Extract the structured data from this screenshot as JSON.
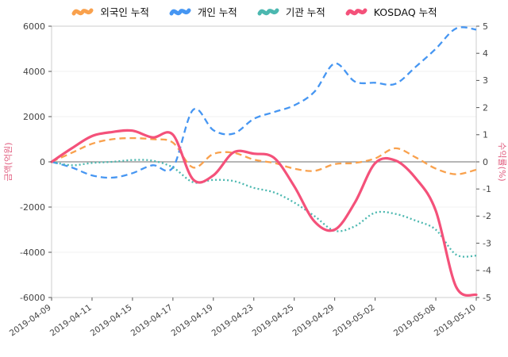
{
  "chart_data": {
    "type": "line",
    "ylabel_left": "금액(억원)",
    "ylabel_right": "수익률(%)",
    "ylim_left": [
      -6000,
      6000
    ],
    "ylim_right": [
      -5,
      5
    ],
    "yticks_left": [
      -6000,
      -4000,
      -2000,
      0,
      2000,
      4000,
      6000
    ],
    "yticks_right": [
      -5,
      -4,
      -3,
      -2,
      -1,
      0,
      1,
      2,
      3,
      4,
      5
    ],
    "grid": false,
    "legend_position": "top",
    "x": [
      "2019-04-09",
      "2019-04-10",
      "2019-04-11",
      "2019-04-12",
      "2019-04-15",
      "2019-04-16",
      "2019-04-17",
      "2019-04-18",
      "2019-04-19",
      "2019-04-22",
      "2019-04-23",
      "2019-04-24",
      "2019-04-25",
      "2019-04-26",
      "2019-04-29",
      "2019-04-30",
      "2019-05-02",
      "2019-05-03",
      "2019-05-07",
      "2019-05-08",
      "2019-05-09",
      "2019-05-10"
    ],
    "xtick_labels": [
      "2019-04-09",
      "2019-04-11",
      "2019-04-15",
      "2019-04-17",
      "2019-04-19",
      "2019-04-23",
      "2019-04-25",
      "2019-04-29",
      "2019-05-02",
      "2019-05-08",
      "2019-05-10"
    ],
    "xtick_idx": [
      0,
      2,
      4,
      6,
      8,
      10,
      12,
      14,
      16,
      19,
      21
    ],
    "series": [
      {
        "name": "외국인 누적",
        "axis": "left",
        "color": "#f9a14d",
        "style": "dashed",
        "values": [
          0,
          400,
          800,
          1000,
          1050,
          1000,
          850,
          -250,
          350,
          400,
          100,
          -50,
          -300,
          -400,
          -100,
          -50,
          150,
          600,
          200,
          -300,
          -550,
          -350
        ]
      },
      {
        "name": "개인 누적",
        "axis": "left",
        "color": "#4696f2",
        "style": "dashed",
        "values": [
          0,
          -250,
          -600,
          -700,
          -500,
          -150,
          -250,
          2300,
          1400,
          1250,
          1900,
          2200,
          2500,
          3100,
          4350,
          3550,
          3500,
          3450,
          4200,
          5000,
          5900,
          5850
        ]
      },
      {
        "name": "기관 누적",
        "axis": "left",
        "color": "#4cb8b0",
        "style": "dotted",
        "values": [
          0,
          -150,
          -50,
          0,
          80,
          50,
          -250,
          -900,
          -800,
          -850,
          -1150,
          -1350,
          -1800,
          -2400,
          -3050,
          -2850,
          -2250,
          -2300,
          -2600,
          -3000,
          -4100,
          -4150
        ]
      },
      {
        "name": "KOSDAQ 누적",
        "axis": "right",
        "color": "#f4517a",
        "style": "solid",
        "values": [
          0,
          0.5,
          0.95,
          1.1,
          1.15,
          0.9,
          1.0,
          -0.65,
          -0.5,
          0.35,
          0.3,
          0.15,
          -0.9,
          -2.2,
          -2.5,
          -1.5,
          -0.05,
          0.05,
          -0.6,
          -1.8,
          -4.6,
          -4.9
        ]
      }
    ]
  }
}
